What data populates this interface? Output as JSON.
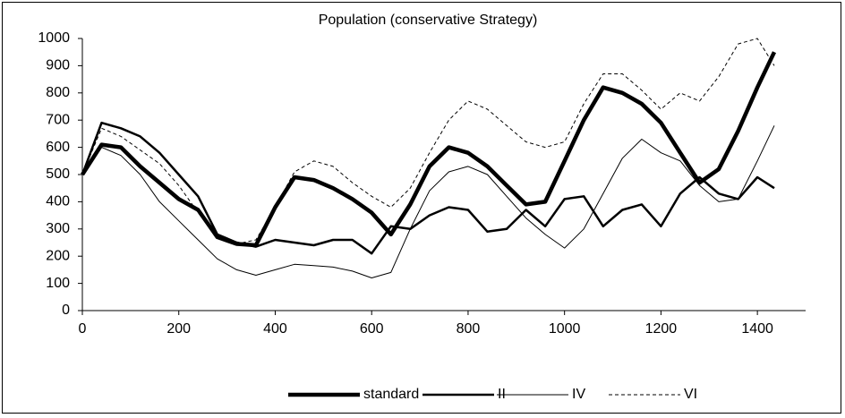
{
  "chart_data": {
    "type": "line",
    "title": "Population (conservative Strategy)",
    "x": [
      0,
      40,
      80,
      120,
      160,
      200,
      240,
      280,
      320,
      360,
      400,
      440,
      480,
      520,
      560,
      600,
      640,
      680,
      720,
      760,
      800,
      840,
      880,
      920,
      960,
      1000,
      1040,
      1080,
      1120,
      1160,
      1200,
      1240,
      1280,
      1320,
      1360,
      1400,
      1435
    ],
    "series": [
      {
        "name": "standard",
        "color": "#000000",
        "values": [
          500,
          610,
          600,
          530,
          470,
          410,
          370,
          270,
          245,
          240,
          380,
          490,
          480,
          450,
          410,
          360,
          280,
          390,
          530,
          600,
          580,
          530,
          460,
          390,
          400,
          550,
          700,
          820,
          800,
          760,
          690,
          580,
          470,
          520,
          660,
          820,
          950
        ]
      },
      {
        "name": "II",
        "color": "#000000",
        "values": [
          500,
          690,
          670,
          640,
          580,
          500,
          420,
          280,
          250,
          235,
          260,
          250,
          240,
          260,
          260,
          210,
          310,
          300,
          350,
          380,
          370,
          290,
          300,
          370,
          310,
          410,
          420,
          310,
          370,
          390,
          310,
          430,
          490,
          430,
          410,
          490,
          450
        ]
      },
      {
        "name": "IV",
        "color": "#000000",
        "values": [
          500,
          600,
          570,
          500,
          400,
          330,
          260,
          190,
          150,
          130,
          150,
          170,
          165,
          160,
          145,
          120,
          140,
          300,
          440,
          510,
          530,
          500,
          420,
          340,
          280,
          230,
          300,
          430,
          560,
          630,
          580,
          550,
          460,
          400,
          410,
          550,
          680
        ]
      },
      {
        "name": "VI",
        "color": "#000000",
        "dashed": true,
        "values": [
          500,
          670,
          640,
          590,
          540,
          460,
          360,
          270,
          245,
          260,
          380,
          510,
          550,
          530,
          470,
          420,
          380,
          450,
          580,
          700,
          770,
          740,
          680,
          620,
          600,
          620,
          760,
          870,
          870,
          810,
          740,
          800,
          770,
          860,
          980,
          1000,
          900
        ]
      }
    ],
    "xlim": [
      0,
      1500
    ],
    "xticks": [
      0,
      200,
      400,
      600,
      800,
      1000,
      1200,
      1400
    ],
    "ylim": [
      0,
      1000
    ],
    "yticks": [
      0,
      100,
      200,
      300,
      400,
      500,
      600,
      700,
      800,
      900,
      1000
    ],
    "legend": "bottom"
  }
}
